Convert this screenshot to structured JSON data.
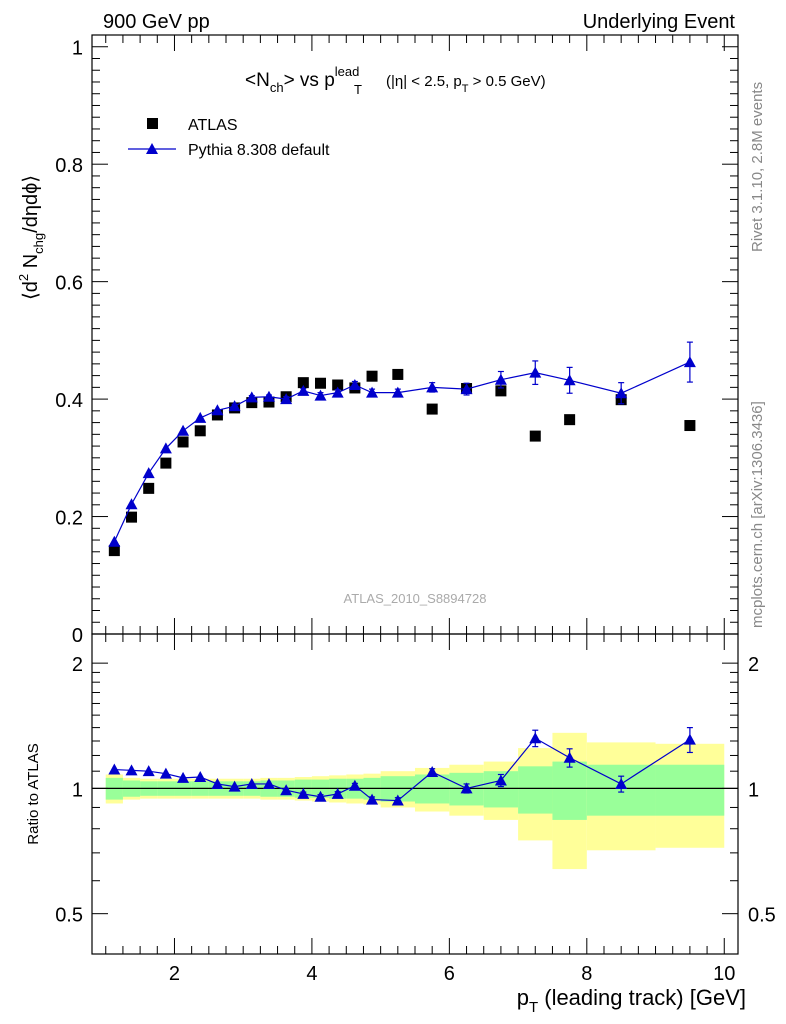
{
  "header": {
    "left": "900 GeV pp",
    "right": "Underlying Event"
  },
  "side_labels": {
    "rivet": "Rivet 3.1.10,  2.8M events",
    "mcplots": "mcplots.cern.ch [arXiv:1306.3436]"
  },
  "colors": {
    "model": "#0000cc",
    "data": "#000000",
    "band_inner": "#99ff99",
    "band_outer": "#ffff99"
  },
  "chart_data": [
    {
      "type": "scatter",
      "title": {
        "main": "<N",
        "main_sub": "ch",
        "main_mid": "> vs p",
        "main_sup": "lead",
        "main_sub2": "T",
        "cuts": "(|η| < 2.5, p",
        "cuts_sub": "T",
        "cuts_end": " > 0.5 GeV)"
      },
      "ylabel": {
        "p1": "⟨d",
        "sup": "2",
        "p2": " N",
        "sub": "chg",
        "p3": "/dηdϕ⟩"
      },
      "watermark": "ATLAS_2010_S8894728",
      "xlim": [
        0.8,
        10.2
      ],
      "ylim": [
        0,
        1.02
      ],
      "y_ticks": [
        {
          "v": 0,
          "label": "0"
        },
        {
          "v": 0.2,
          "label": "0.2"
        },
        {
          "v": 0.4,
          "label": "0.4"
        },
        {
          "v": 0.6,
          "label": "0.6"
        },
        {
          "v": 0.8,
          "label": "0.8"
        },
        {
          "v": 1,
          "label": "1"
        }
      ],
      "legend": {
        "position": "top-left",
        "data_label": "ATLAS",
        "model_label": "Pythia 8.308 default"
      },
      "series": [
        {
          "name": "ATLAS",
          "marker": "square",
          "x": [
            1.125,
            1.375,
            1.625,
            1.875,
            2.125,
            2.375,
            2.625,
            2.875,
            3.125,
            3.375,
            3.625,
            3.875,
            4.125,
            4.375,
            4.625,
            4.875,
            5.25,
            5.75,
            6.25,
            6.75,
            7.25,
            7.75,
            8.5,
            9.5
          ],
          "y": [
            0.142,
            0.199,
            0.248,
            0.291,
            0.327,
            0.346,
            0.373,
            0.385,
            0.394,
            0.395,
            0.404,
            0.428,
            0.427,
            0.424,
            0.419,
            0.439,
            0.442,
            0.383,
            0.418,
            0.414,
            0.337,
            0.365,
            0.399,
            0.355
          ]
        },
        {
          "name": "Pythia 8.308 default",
          "marker": "triangle",
          "x": [
            1.125,
            1.375,
            1.625,
            1.875,
            2.125,
            2.375,
            2.625,
            2.875,
            3.125,
            3.375,
            3.625,
            3.875,
            4.125,
            4.375,
            4.625,
            4.875,
            5.25,
            5.75,
            6.25,
            6.75,
            7.25,
            7.75,
            8.5,
            9.5
          ],
          "y": [
            0.157,
            0.221,
            0.274,
            0.316,
            0.346,
            0.368,
            0.381,
            0.388,
            0.403,
            0.404,
            0.4,
            0.414,
            0.406,
            0.411,
            0.424,
            0.411,
            0.411,
            0.42,
            0.417,
            0.433,
            0.445,
            0.432,
            0.41,
            0.463
          ],
          "yerr": [
            0.002,
            0.002,
            0.002,
            0.002,
            0.002,
            0.002,
            0.002,
            0.003,
            0.003,
            0.003,
            0.004,
            0.004,
            0.005,
            0.005,
            0.006,
            0.006,
            0.006,
            0.008,
            0.01,
            0.014,
            0.02,
            0.022,
            0.018,
            0.034
          ]
        }
      ]
    },
    {
      "type": "scatter",
      "ylabel": "Ratio to ATLAS",
      "xlabel": {
        "p": "p",
        "sub": "T",
        "rest": " (leading track) [GeV]"
      },
      "xlim": [
        0.8,
        10.2
      ],
      "ylim": [
        0.4,
        2.35
      ],
      "y_scale": "log",
      "x_ticks": [
        {
          "v": 2,
          "label": "2"
        },
        {
          "v": 4,
          "label": "4"
        },
        {
          "v": 6,
          "label": "6"
        },
        {
          "v": 8,
          "label": "8"
        },
        {
          "v": 10,
          "label": "10"
        }
      ],
      "y_ticks": [
        {
          "v": 0.5,
          "label": "0.5"
        },
        {
          "v": 1,
          "label": "1"
        },
        {
          "v": 2,
          "label": "2"
        }
      ],
      "reference_line": 1,
      "bands": {
        "bin_edges": [
          1.0,
          1.25,
          1.5,
          1.75,
          2.0,
          2.25,
          2.5,
          2.75,
          3.0,
          3.25,
          3.5,
          3.75,
          4.0,
          4.25,
          4.5,
          4.75,
          5.0,
          5.5,
          6.0,
          6.5,
          7.0,
          7.5,
          8.0,
          9.0,
          10.0
        ],
        "inner_half_width": [
          0.06,
          0.045,
          0.04,
          0.04,
          0.04,
          0.04,
          0.04,
          0.04,
          0.04,
          0.045,
          0.045,
          0.05,
          0.05,
          0.055,
          0.055,
          0.06,
          0.07,
          0.08,
          0.09,
          0.1,
          0.13,
          0.16,
          0.14,
          0.14
        ],
        "outer_half_width": [
          0.08,
          0.06,
          0.055,
          0.055,
          0.055,
          0.055,
          0.055,
          0.055,
          0.055,
          0.06,
          0.06,
          0.065,
          0.07,
          0.075,
          0.08,
          0.085,
          0.1,
          0.12,
          0.14,
          0.16,
          0.25,
          0.36,
          0.29,
          0.28
        ]
      },
      "series": [
        {
          "name": "Pythia 8.308 default",
          "marker": "triangle",
          "x": [
            1.125,
            1.375,
            1.625,
            1.875,
            2.125,
            2.375,
            2.625,
            2.875,
            3.125,
            3.375,
            3.625,
            3.875,
            4.125,
            4.375,
            4.625,
            4.875,
            5.25,
            5.75,
            6.25,
            6.75,
            7.25,
            7.75,
            8.5,
            9.5
          ],
          "y": [
            1.11,
            1.105,
            1.1,
            1.085,
            1.06,
            1.065,
            1.025,
            1.01,
            1.025,
            1.025,
            0.99,
            0.97,
            0.955,
            0.97,
            1.015,
            0.94,
            0.935,
            1.095,
            1.0,
            1.045,
            1.32,
            1.185,
            1.025,
            1.31
          ],
          "yerr": [
            0.005,
            0.005,
            0.005,
            0.005,
            0.005,
            0.005,
            0.005,
            0.006,
            0.007,
            0.008,
            0.009,
            0.01,
            0.011,
            0.012,
            0.013,
            0.014,
            0.015,
            0.02,
            0.025,
            0.035,
            0.06,
            0.06,
            0.045,
            0.09
          ]
        }
      ]
    }
  ]
}
